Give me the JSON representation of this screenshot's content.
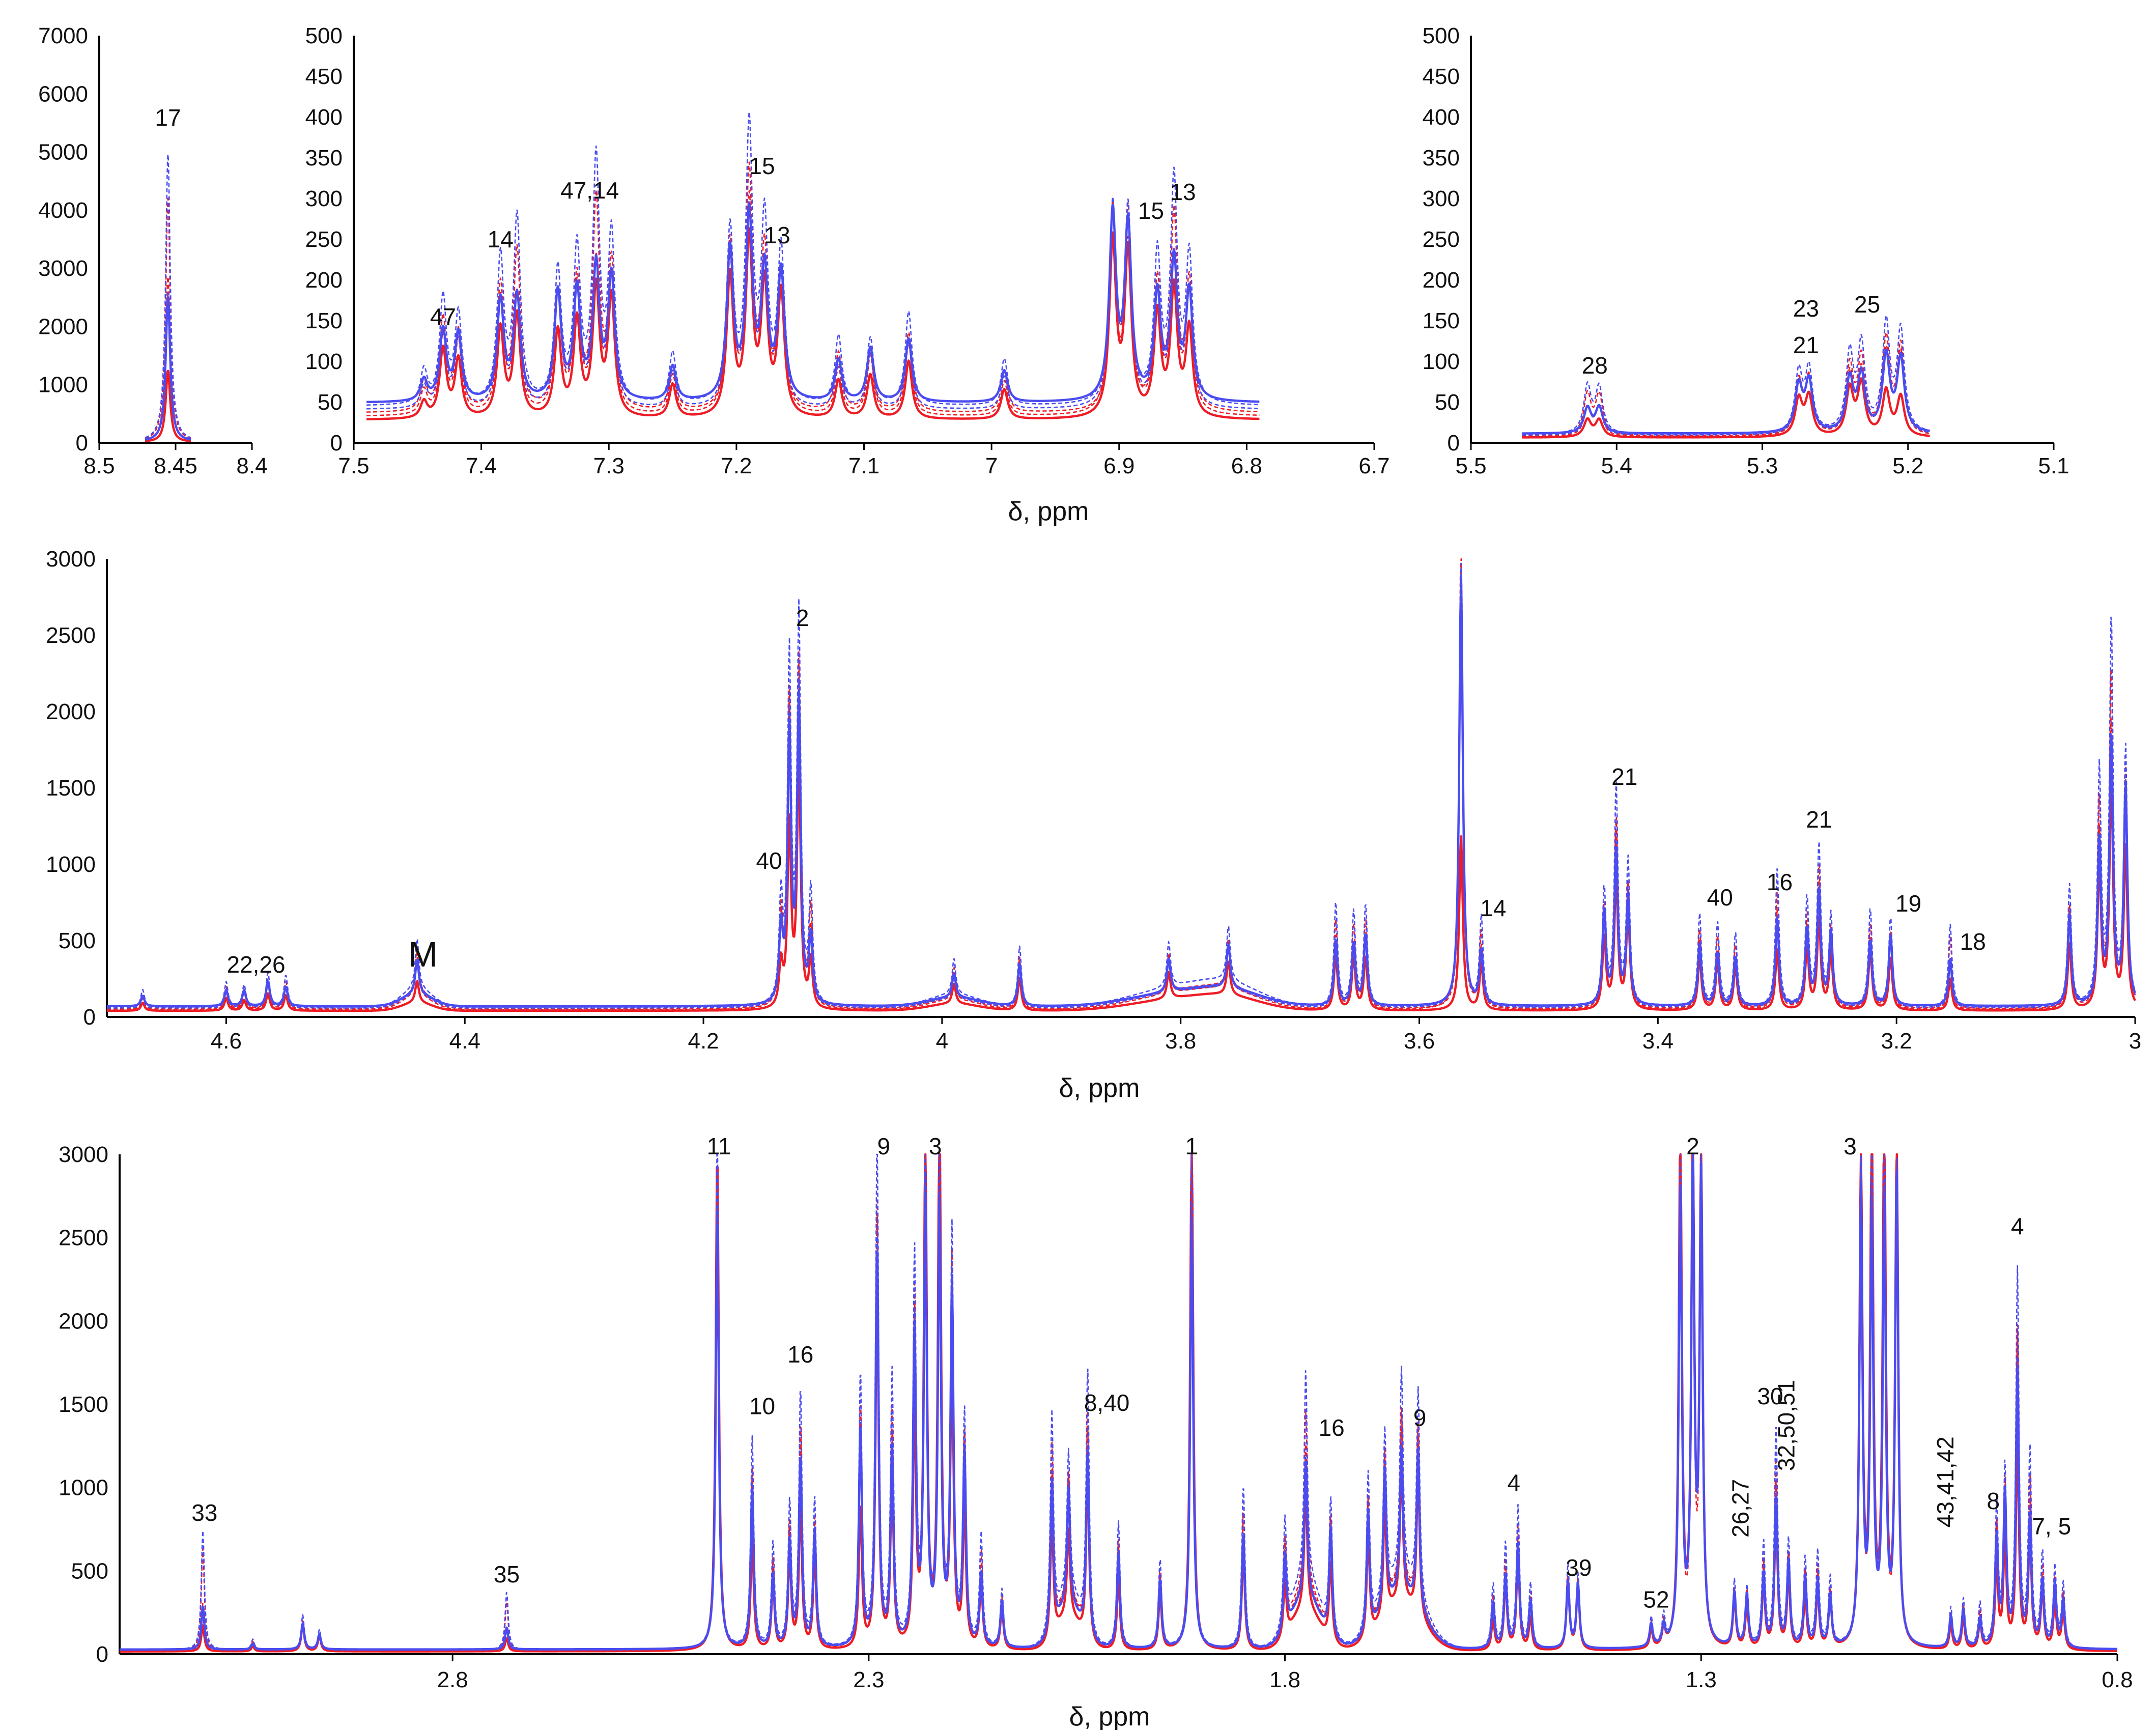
{
  "chart_data": [
    {
      "id": "p1",
      "type": "line",
      "title": "",
      "xlabel": "",
      "ylabel": "",
      "xlim": [
        8.5,
        8.4
      ],
      "ylim": [
        0,
        7000
      ],
      "x_ticks": [
        "8.5",
        "8.45",
        "8.4"
      ],
      "y_ticks": [
        "0",
        "1000",
        "2000",
        "3000",
        "4000",
        "5000",
        "6000",
        "7000"
      ],
      "annotations": [
        {
          "text": "17",
          "x": 8.455,
          "y": 5450
        }
      ],
      "peaks": [
        [
          8.455,
          4900,
          2800,
          1250
        ]
      ],
      "baseline": 15,
      "data_range": [
        8.47,
        8.44
      ]
    },
    {
      "id": "p2",
      "type": "line",
      "title": "",
      "xlabel": "δ, ppm",
      "ylabel": "",
      "xlim": [
        7.5,
        6.7
      ],
      "ylim": [
        0,
        500
      ],
      "x_ticks": [
        "7.5",
        "7.4",
        "7.3",
        "7.2",
        "7.1",
        "7",
        "6.9",
        "6.8",
        "6.7"
      ],
      "y_ticks": [
        "0",
        "50",
        "100",
        "150",
        "200",
        "250",
        "300",
        "350",
        "400",
        "450",
        "500"
      ],
      "annotations": [
        {
          "text": "47",
          "x": 7.43,
          "y": 145
        },
        {
          "text": "14",
          "x": 7.385,
          "y": 240
        },
        {
          "text": "47,14",
          "x": 7.315,
          "y": 300
        },
        {
          "text": "15",
          "x": 7.18,
          "y": 330
        },
        {
          "text": "13",
          "x": 7.168,
          "y": 245
        },
        {
          "text": "15",
          "x": 6.875,
          "y": 275
        },
        {
          "text": "13",
          "x": 6.85,
          "y": 298
        }
      ],
      "peaks": [
        [
          7.445,
          40,
          30,
          20
        ],
        [
          7.43,
          125,
          100,
          80
        ],
        [
          7.418,
          110,
          90,
          70
        ],
        [
          7.385,
          175,
          140,
          110
        ],
        [
          7.372,
          215,
          150,
          120
        ],
        [
          7.34,
          170,
          140,
          110
        ],
        [
          7.325,
          185,
          150,
          120
        ],
        [
          7.31,
          280,
          190,
          150
        ],
        [
          7.298,
          200,
          170,
          140
        ],
        [
          7.25,
          60,
          50,
          40
        ],
        [
          7.205,
          215,
          200,
          180
        ],
        [
          7.19,
          320,
          260,
          210
        ],
        [
          7.178,
          210,
          180,
          150
        ],
        [
          7.165,
          190,
          170,
          150
        ],
        [
          7.12,
          80,
          60,
          45
        ],
        [
          7.095,
          85,
          70,
          55
        ],
        [
          7.065,
          110,
          90,
          70
        ],
        [
          6.99,
          55,
          45,
          35
        ],
        [
          6.905,
          250,
          240,
          220
        ],
        [
          6.893,
          240,
          230,
          210
        ],
        [
          6.87,
          170,
          150,
          120
        ],
        [
          6.857,
          265,
          190,
          150
        ],
        [
          6.845,
          185,
          140,
          110
        ]
      ],
      "baseline": 35,
      "data_range": [
        7.49,
        6.79
      ]
    },
    {
      "id": "p3",
      "type": "line",
      "title": "",
      "xlabel": "",
      "ylabel": "",
      "xlim": [
        5.5,
        5.1
      ],
      "ylim": [
        0,
        500
      ],
      "x_ticks": [
        "5.5",
        "5.4",
        "5.3",
        "5.2",
        "5.1"
      ],
      "y_ticks": [
        "0",
        "50",
        "100",
        "150",
        "200",
        "250",
        "300",
        "350",
        "400",
        "450",
        "500"
      ],
      "annotations": [
        {
          "text": "28",
          "x": 5.415,
          "y": 85
        },
        {
          "text": "23",
          "x": 5.27,
          "y": 155
        },
        {
          "text": "21",
          "x": 5.27,
          "y": 110
        },
        {
          "text": "25",
          "x": 5.228,
          "y": 160
        }
      ],
      "peaks": [
        [
          5.42,
          55,
          35,
          20
        ],
        [
          5.412,
          55,
          35,
          20
        ],
        [
          5.275,
          75,
          60,
          45
        ],
        [
          5.268,
          80,
          65,
          50
        ],
        [
          5.24,
          90,
          75,
          55
        ],
        [
          5.232,
          100,
          80,
          60
        ],
        [
          5.215,
          135,
          100,
          55
        ],
        [
          5.205,
          130,
          95,
          50
        ]
      ],
      "baseline": 8,
      "data_range": [
        5.465,
        5.185
      ]
    },
    {
      "id": "p4",
      "type": "line",
      "title": "",
      "xlabel": "δ, ppm",
      "ylabel": "",
      "xlim": [
        4.7,
        3.0
      ],
      "ylim": [
        0,
        3000
      ],
      "x_ticks": [
        "4.6",
        "4.4",
        "4.2",
        "4",
        "3.8",
        "3.6",
        "3.4",
        "3.2",
        "3"
      ],
      "y_ticks": [
        "0",
        "500",
        "1000",
        "1500",
        "2000",
        "2500",
        "3000"
      ],
      "annotations": [
        {
          "text": "22,26",
          "x": 4.575,
          "y": 290
        },
        {
          "text": "M",
          "x": 4.435,
          "y": 330
        },
        {
          "text": "40",
          "x": 4.145,
          "y": 970
        },
        {
          "text": "2",
          "x": 4.117,
          "y": 2560
        },
        {
          "text": "14",
          "x": 3.538,
          "y": 660
        },
        {
          "text": "21",
          "x": 3.428,
          "y": 1520
        },
        {
          "text": "40",
          "x": 3.348,
          "y": 730
        },
        {
          "text": "16",
          "x": 3.298,
          "y": 830
        },
        {
          "text": "21",
          "x": 3.265,
          "y": 1240
        },
        {
          "text": "19",
          "x": 3.19,
          "y": 690
        },
        {
          "text": "18",
          "x": 3.136,
          "y": 440
        }
      ],
      "peaks": [
        [
          4.67,
          110,
          80,
          50
        ],
        [
          4.6,
          160,
          120,
          80
        ],
        [
          4.585,
          150,
          110,
          70
        ],
        [
          4.565,
          230,
          180,
          120
        ],
        [
          4.55,
          200,
          150,
          100
        ],
        [
          4.44,
          340,
          250,
          150
        ],
        [
          4.135,
          700,
          500,
          300
        ],
        [
          4.128,
          2330,
          1900,
          1250
        ],
        [
          4.12,
          2520,
          2200,
          1650
        ],
        [
          4.11,
          700,
          500,
          300
        ],
        [
          3.99,
          230,
          180,
          130
        ],
        [
          3.935,
          400,
          300,
          220
        ],
        [
          3.81,
          300,
          240,
          180
        ],
        [
          3.76,
          380,
          300,
          230
        ],
        [
          3.67,
          650,
          500,
          350
        ],
        [
          3.655,
          600,
          450,
          330
        ],
        [
          3.645,
          680,
          500,
          350
        ],
        [
          3.565,
          3000,
          3000,
          1200
        ],
        [
          3.548,
          560,
          400,
          300
        ],
        [
          3.445,
          800,
          650,
          500
        ],
        [
          3.435,
          1470,
          1100,
          900
        ],
        [
          3.425,
          920,
          800,
          650
        ],
        [
          3.365,
          600,
          450,
          350
        ],
        [
          3.35,
          520,
          400,
          300
        ],
        [
          3.335,
          480,
          350,
          280
        ],
        [
          3.3,
          880,
          650,
          400
        ],
        [
          3.275,
          700,
          560,
          400
        ],
        [
          3.265,
          1090,
          800,
          600
        ],
        [
          3.255,
          620,
          500,
          400
        ],
        [
          3.222,
          620,
          500,
          380
        ],
        [
          3.205,
          600,
          500,
          350
        ],
        [
          3.155,
          520,
          350,
          200
        ],
        [
          3.055,
          800,
          650,
          450
        ],
        [
          3.03,
          1480,
          1200,
          900
        ],
        [
          3.02,
          2540,
          1900,
          1450
        ],
        [
          3.008,
          1760,
          1500,
          1100
        ]
      ],
      "baseline": 50,
      "data_range": [
        4.7,
        3.0
      ]
    },
    {
      "id": "p5",
      "type": "line",
      "title": "",
      "xlabel": "δ, ppm",
      "ylabel": "",
      "xlim": [
        3.2,
        0.8
      ],
      "ylim": [
        0,
        3000
      ],
      "x_ticks": [
        "2.8",
        "2.3",
        "1.8",
        "1.3",
        "0.8"
      ],
      "y_ticks": [
        "0",
        "500",
        "1000",
        "1500",
        "2000",
        "2500",
        "3000"
      ],
      "annotations": [
        {
          "text": "33",
          "x": 3.098,
          "y": 800
        },
        {
          "text": "35",
          "x": 2.735,
          "y": 430
        },
        {
          "text": "11",
          "x": 2.48,
          "y": 3000
        },
        {
          "text": "10",
          "x": 2.428,
          "y": 1440
        },
        {
          "text": "16",
          "x": 2.382,
          "y": 1750
        },
        {
          "text": "9",
          "x": 2.282,
          "y": 3100
        },
        {
          "text": "3",
          "x": 2.22,
          "y": 3010
        },
        {
          "text": "8,40",
          "x": 2.014,
          "y": 1460
        },
        {
          "text": "1",
          "x": 1.912,
          "y": 3000
        },
        {
          "text": "16",
          "x": 1.744,
          "y": 1310
        },
        {
          "text": "9",
          "x": 1.638,
          "y": 1370
        },
        {
          "text": "4",
          "x": 1.525,
          "y": 980
        },
        {
          "text": "39",
          "x": 1.447,
          "y": 470
        },
        {
          "text": "52",
          "x": 1.354,
          "y": 280
        },
        {
          "text": "2",
          "x": 1.31,
          "y": 3000
        },
        {
          "text": "26,27",
          "x": 1.243,
          "y": 700
        },
        {
          "text": "30",
          "x": 1.217,
          "y": 1500
        },
        {
          "text": "32,50,51",
          "x": 1.188,
          "y": 1100
        },
        {
          "text": "3",
          "x": 1.121,
          "y": 3000
        },
        {
          "text": "43,41,42",
          "x": 0.997,
          "y": 760
        },
        {
          "text": "8",
          "x": 0.949,
          "y": 870
        },
        {
          "text": "4",
          "x": 0.92,
          "y": 2520
        },
        {
          "text": "7, 5",
          "x": 0.879,
          "y": 720
        }
      ],
      "peaks": [
        [
          3.1,
          680,
          300,
          150
        ],
        [
          3.04,
          60,
          40,
          30
        ],
        [
          2.98,
          200,
          180,
          160
        ],
        [
          2.96,
          120,
          100,
          90
        ],
        [
          2.735,
          340,
          150,
          80
        ],
        [
          2.482,
          3000,
          3000,
          3000
        ],
        [
          2.44,
          1330,
          1000,
          700
        ],
        [
          2.415,
          600,
          500,
          400
        ],
        [
          2.395,
          850,
          700,
          550
        ],
        [
          2.382,
          1620,
          1200,
          900
        ],
        [
          2.365,
          900,
          750,
          600
        ],
        [
          2.31,
          1720,
          1400,
          900
        ],
        [
          2.29,
          3000,
          2800,
          2200
        ],
        [
          2.272,
          1580,
          1300,
          1000
        ],
        [
          2.245,
          2420,
          2000,
          1500
        ],
        [
          2.232,
          3000,
          3000,
          3000
        ],
        [
          2.215,
          3000,
          3000,
          3000
        ],
        [
          2.2,
          2520,
          2300,
          1800
        ],
        [
          2.185,
          1450,
          1200,
          900
        ],
        [
          2.165,
          650,
          500,
          400
        ],
        [
          2.14,
          350,
          300,
          250
        ],
        [
          2.08,
          1300,
          1000,
          700
        ],
        [
          2.06,
          900,
          750,
          550
        ],
        [
          2.037,
          1530,
          1300,
          1000
        ],
        [
          2.0,
          800,
          600,
          450
        ],
        [
          1.95,
          550,
          450,
          350
        ],
        [
          1.912,
          3000,
          3000,
          3000
        ],
        [
          1.85,
          950,
          800,
          600
        ],
        [
          1.8,
          650,
          500,
          350
        ],
        [
          1.775,
          1200,
          950,
          700
        ],
        [
          1.745,
          850,
          700,
          500
        ],
        [
          1.7,
          950,
          800,
          600
        ],
        [
          1.68,
          1050,
          900,
          700
        ],
        [
          1.66,
          1200,
          1000,
          800
        ],
        [
          1.64,
          1250,
          1050,
          850
        ],
        [
          1.55,
          400,
          300,
          200
        ],
        [
          1.535,
          600,
          500,
          400
        ],
        [
          1.52,
          820,
          700,
          550
        ],
        [
          1.505,
          400,
          300,
          200
        ],
        [
          1.46,
          480,
          450,
          400
        ],
        [
          1.448,
          450,
          420,
          380
        ],
        [
          1.36,
          180,
          150,
          120
        ],
        [
          1.345,
          170,
          140,
          110
        ],
        [
          1.325,
          3000,
          3000,
          3000
        ],
        [
          1.31,
          3000,
          3000,
          3000
        ],
        [
          1.3,
          3000,
          3000,
          3000
        ],
        [
          1.26,
          400,
          350,
          300
        ],
        [
          1.245,
          380,
          330,
          280
        ],
        [
          1.225,
          600,
          500,
          400
        ],
        [
          1.21,
          1280,
          1050,
          800
        ],
        [
          1.195,
          650,
          550,
          450
        ],
        [
          1.175,
          550,
          450,
          350
        ],
        [
          1.16,
          550,
          450,
          350
        ],
        [
          1.145,
          400,
          350,
          300
        ],
        [
          1.108,
          3000,
          3000,
          3000
        ],
        [
          1.095,
          3000,
          3000,
          3000
        ],
        [
          1.08,
          3000,
          3000,
          3000
        ],
        [
          1.065,
          3000,
          3000,
          3000
        ],
        [
          1.0,
          250,
          200,
          150
        ],
        [
          0.985,
          300,
          250,
          200
        ],
        [
          0.965,
          250,
          200,
          160
        ],
        [
          0.945,
          850,
          700,
          500
        ],
        [
          0.935,
          1100,
          950,
          700
        ],
        [
          0.92,
          2280,
          1800,
          1300
        ],
        [
          0.905,
          1120,
          900,
          700
        ],
        [
          0.89,
          550,
          450,
          350
        ],
        [
          0.875,
          500,
          400,
          300
        ],
        [
          0.865,
          400,
          300,
          250
        ]
      ],
      "baseline": 20,
      "data_range": [
        3.2,
        0.8
      ]
    }
  ],
  "series_legend": [
    {
      "name": "red spectra",
      "color": "#ee1c25"
    },
    {
      "name": "blue spectra",
      "color": "#4a4cf0"
    }
  ]
}
